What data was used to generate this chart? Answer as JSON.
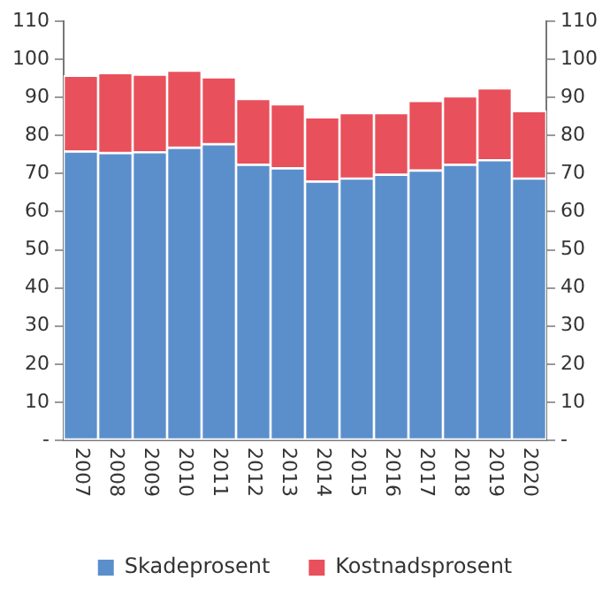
{
  "chart_data": {
    "type": "bar",
    "stacked": true,
    "categories": [
      "2007",
      "2008",
      "2009",
      "2010",
      "2011",
      "2012",
      "2013",
      "2014",
      "2015",
      "2016",
      "2017",
      "2018",
      "2019",
      "2020"
    ],
    "series": [
      {
        "name": "Skadeprosent",
        "color": "#5b8fcc",
        "values": [
          75.8,
          75.4,
          75.6,
          76.8,
          77.7,
          72.3,
          71.4,
          67.9,
          68.7,
          69.7,
          70.8,
          72.3,
          73.5,
          68.7
        ]
      },
      {
        "name": "Kostnadsprosent",
        "color": "#e8505b",
        "values": [
          19.9,
          21.0,
          20.4,
          20.2,
          17.6,
          17.3,
          16.8,
          16.9,
          17.2,
          16.2,
          18.3,
          18.0,
          18.9,
          17.7
        ]
      }
    ],
    "ylim": [
      0,
      110
    ],
    "yticks": [
      {
        "value": 0,
        "label": "-"
      },
      10,
      20,
      30,
      40,
      50,
      60,
      70,
      80,
      90,
      100,
      110
    ],
    "y2lim": [
      0,
      110
    ],
    "y2ticks": [
      {
        "value": 0,
        "label": "-"
      },
      10,
      20,
      30,
      40,
      50,
      60,
      70,
      80,
      90,
      100,
      110
    ],
    "legend": "bottom"
  }
}
